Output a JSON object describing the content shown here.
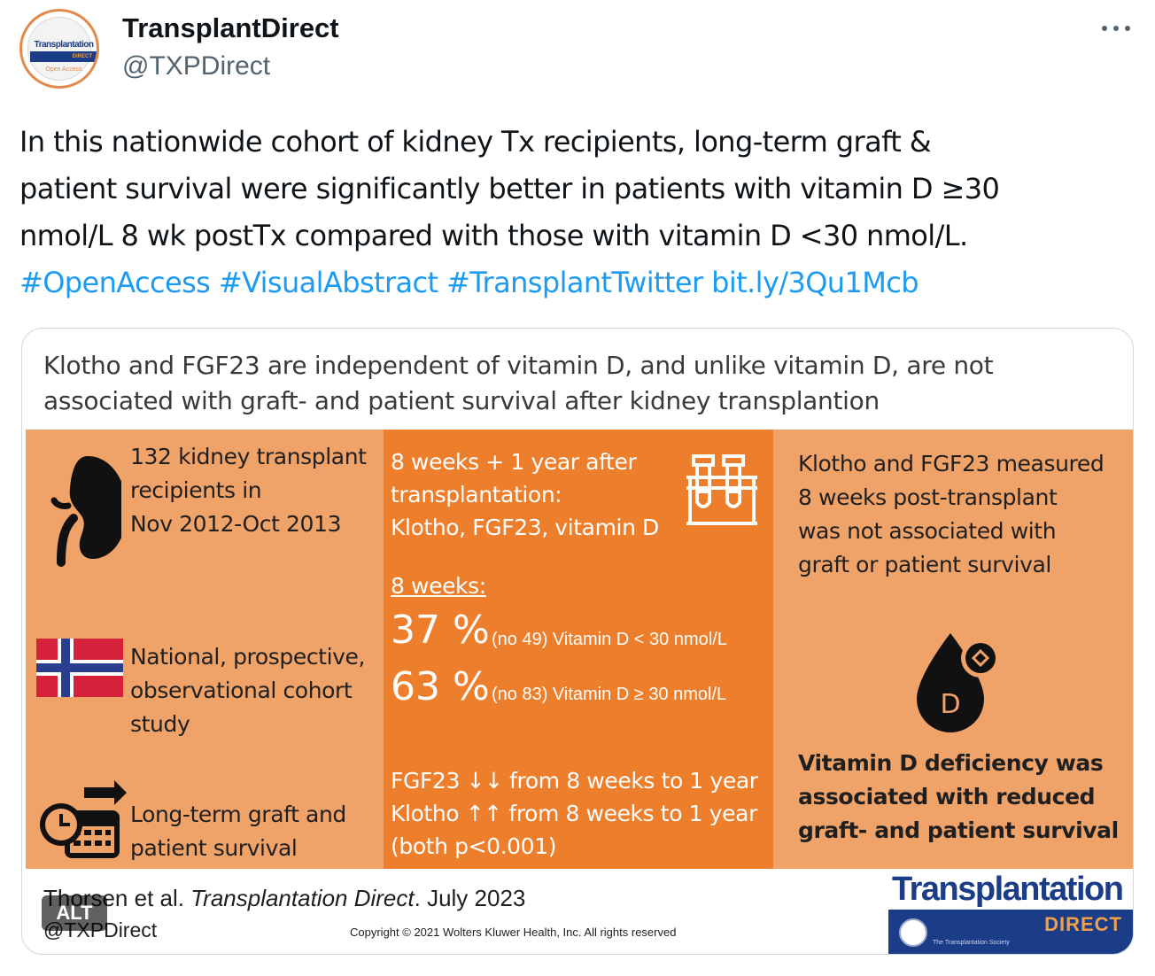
{
  "account": {
    "display_name": "TransplantDirect",
    "handle": "@TXPDirect",
    "avatar_title": "Transplantation",
    "avatar_band": "DIRECT",
    "avatar_sub": "Open Access"
  },
  "tweet": {
    "line1": "In this nationwide cohort of kidney Tx recipients, long-term graft &",
    "line2": "patient survival were significantly better in patients with vitamin D ≥30",
    "line3": "nmol/L 8 wk postTx compared with those with vitamin D <30 nmol/L.",
    "hashtags": [
      "#OpenAccess",
      "#VisualAbstract",
      "#TransplantTwitter"
    ],
    "link": "bit.ly/3Qu1Mcb"
  },
  "media": {
    "title_line1": "Klotho and FGF23 are independent of vitamin D, and unlike vitamin D, are not",
    "title_line2": "associated with graft- and patient survival after kidney transplantion",
    "left": {
      "item1": [
        "132 kidney transplant",
        "recipients in",
        "Nov 2012-Oct 2013"
      ],
      "item2": [
        "National, prospective,",
        "observational cohort",
        "study"
      ],
      "item3": [
        "Long-term graft and",
        "patient survival"
      ]
    },
    "middle": {
      "intro": [
        "8 weeks + 1 year after",
        "transplantation:",
        "Klotho, FGF23, vitamin D"
      ],
      "weeks_label": "8 weeks:",
      "stat1_pct": "37 %",
      "stat1_desc": "(no 49) Vitamin D < 30 nmol/L",
      "stat2_pct": "63 %",
      "stat2_desc": "(no 83) Vitamin D ≥ 30 nmol/L",
      "trend": [
        "FGF23 ↓↓ from 8 weeks to 1 year",
        "Klotho ↑↑ from 8 weeks to 1 year",
        "(both p<0.001)"
      ]
    },
    "right": {
      "finding1": [
        "Klotho and FGF23 measured",
        "8 weeks post-transplant",
        "was not associated with",
        "graft or patient survival"
      ],
      "drop_letter": "D",
      "finding2": [
        "Vitamin D deficiency was",
        "associated with reduced",
        "graft- and patient survival"
      ]
    },
    "footer": {
      "cite_authors": "Thorsen et al. ",
      "cite_journal": "Transplantation Direct",
      "cite_date": ". July 2023",
      "handle": "@TXPDirect",
      "copyright": "Copyright © 2021 Wolters Kluwer Health, Inc. All rights reserved"
    },
    "logo": {
      "word": "Transplantation",
      "band": "DIRECT",
      "small": "The Transplantation Society"
    },
    "alt_label": "ALT"
  },
  "colors": {
    "accent_link": "#1d9bf0",
    "panel_light": "#f0a368",
    "panel_dark": "#ec7e2c",
    "brand_navy": "#1b3c87"
  }
}
